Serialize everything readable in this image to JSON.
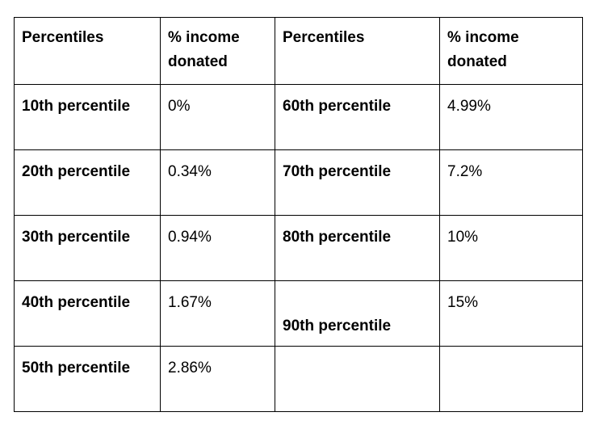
{
  "table": {
    "headers": [
      "Percentiles",
      "% income donated",
      "Percentiles",
      "% income donated"
    ],
    "rows": [
      {
        "left_label": "10th percentile",
        "left_value": "0%",
        "right_label": "60th percentile",
        "right_value": "4.99%"
      },
      {
        "left_label": "20th percentile",
        "left_value": "0.34%",
        "right_label": "70th percentile",
        "right_value": "7.2%"
      },
      {
        "left_label": "30th percentile",
        "left_value": "0.94%",
        "right_label": "80th percentile",
        "right_value": "10%"
      },
      {
        "left_label": "40th percentile",
        "left_value": "1.67%",
        "right_label": "90th percentile",
        "right_value": "15%"
      },
      {
        "left_label": "50th percentile",
        "left_value": "2.86%",
        "right_label": "",
        "right_value": ""
      }
    ]
  }
}
